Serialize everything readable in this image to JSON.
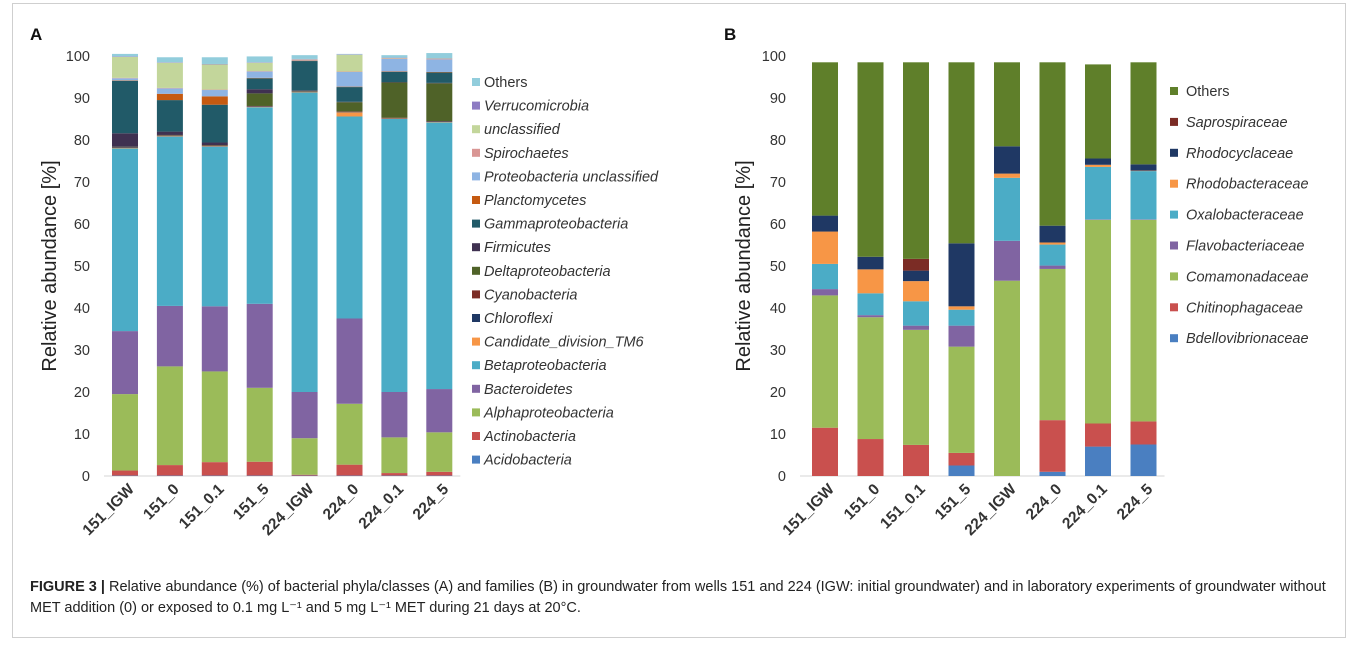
{
  "caption": {
    "figure_label": "FIGURE 3 |",
    "text": "Relative abundance (%) of bacterial phyla/classes (A) and families (B) in groundwater from wells 151 and 224 (IGW: initial groundwater) and in laboratory experiments of groundwater without MET addition (0) or exposed to 0.1 mg L⁻¹ and 5 mg L⁻¹ MET during 21 days at 20°C."
  },
  "chart_data": [
    {
      "panel": "A",
      "type": "bar",
      "stacked": true,
      "ylabel": "Relative abundance [%]",
      "xlabel": "",
      "ylim": [
        0,
        100
      ],
      "yticks": [
        0,
        10,
        20,
        30,
        40,
        50,
        60,
        70,
        80,
        90,
        100
      ],
      "grid": false,
      "legend_position": "right",
      "categories": [
        "151_IGW",
        "151_0",
        "151_0.1",
        "151_5",
        "224_IGW",
        "224_0",
        "224_0.1",
        "224_5"
      ],
      "series": [
        {
          "name": "Acidobacteria",
          "color": "#4a7fc1",
          "italic": true,
          "values": [
            0.1,
            0.1,
            0.1,
            0.1,
            0.1,
            0.1,
            0.1,
            0.1
          ]
        },
        {
          "name": "Actinobacteria",
          "color": "#c9504e",
          "italic": true,
          "values": [
            1.2,
            2.5,
            3.2,
            3.3,
            0.2,
            2.6,
            0.6,
            0.9
          ]
        },
        {
          "name": "Alphaproteobacteria",
          "color": "#9bbb59",
          "italic": true,
          "values": [
            18.2,
            23.5,
            21.6,
            17.6,
            8.7,
            14.5,
            8.5,
            9.4
          ]
        },
        {
          "name": "Bacteroidetes",
          "color": "#8064a2",
          "italic": true,
          "values": [
            15.0,
            14.4,
            15.5,
            20.0,
            11.0,
            20.3,
            10.8,
            10.3
          ]
        },
        {
          "name": "Betaproteobacteria",
          "color": "#4bacc6",
          "italic": true,
          "values": [
            43.5,
            40.3,
            38.0,
            46.8,
            71.3,
            48.1,
            65.0,
            63.5
          ]
        },
        {
          "name": "Candidate_division_TM6",
          "color": "#f79646",
          "italic": true,
          "values": [
            0.1,
            0.1,
            0.1,
            0.1,
            0.1,
            1.0,
            0.1,
            0.1
          ]
        },
        {
          "name": "Chloroflexi",
          "color": "#1f3864",
          "italic": true,
          "values": [
            0.1,
            0.1,
            0.1,
            0.1,
            0.1,
            0.1,
            0.1,
            0.1
          ]
        },
        {
          "name": "Cyanobacteria",
          "color": "#7b2c25",
          "italic": true,
          "values": [
            0.1,
            0.1,
            0.1,
            0.1,
            0.1,
            0.1,
            0.1,
            0.1
          ]
        },
        {
          "name": "Deltaproteobacteria",
          "color": "#4f6228",
          "italic": true,
          "values": [
            0.1,
            0.1,
            0.1,
            3.0,
            0.1,
            2.2,
            8.4,
            9.0
          ]
        },
        {
          "name": "Firmicutes",
          "color": "#3f3151",
          "italic": true,
          "values": [
            3.2,
            0.8,
            0.6,
            1.0,
            0.1,
            0.1,
            0.1,
            0.1
          ]
        },
        {
          "name": "Gammaproteobacteria",
          "color": "#215a68",
          "italic": true,
          "values": [
            12.5,
            7.5,
            9.0,
            2.6,
            7.0,
            3.5,
            2.4,
            2.5
          ]
        },
        {
          "name": "Planctomycetes",
          "color": "#c55a11",
          "italic": true,
          "values": [
            0.1,
            1.5,
            2.0,
            0.1,
            0.1,
            0.1,
            0.1,
            0.1
          ]
        },
        {
          "name": "Proteobacteria unclassified",
          "color": "#8eb4e3",
          "italic": true,
          "values": [
            0.5,
            1.3,
            1.5,
            1.5,
            0.1,
            3.5,
            3.0,
            3.0
          ]
        },
        {
          "name": "Spirochaetes",
          "color": "#d99694",
          "italic": true,
          "values": [
            0.1,
            0.1,
            0.1,
            0.1,
            0.1,
            0.1,
            0.1,
            0.1
          ]
        },
        {
          "name": "unclassified",
          "color": "#c3d69b",
          "italic": true,
          "values": [
            5.0,
            6.0,
            6.0,
            2.0,
            0.1,
            4.0,
            0.1,
            0.1
          ]
        },
        {
          "name": "Verrucomicrobia",
          "color": "#8e7cc3",
          "italic": true,
          "values": [
            0.1,
            0.1,
            0.1,
            0.1,
            0.1,
            0.1,
            0.1,
            0.1
          ]
        },
        {
          "name": "Others",
          "color": "#92cddc",
          "italic": false,
          "values": [
            0.6,
            1.2,
            1.6,
            1.4,
            0.9,
            0.1,
            0.6,
            1.2
          ]
        }
      ]
    },
    {
      "panel": "B",
      "type": "bar",
      "stacked": true,
      "ylabel": "Relative abundance [%]",
      "xlabel": "",
      "ylim": [
        0,
        100
      ],
      "yticks": [
        0,
        10,
        20,
        30,
        40,
        50,
        60,
        70,
        80,
        90,
        100
      ],
      "grid": false,
      "legend_position": "right",
      "categories": [
        "151_IGW",
        "151_0",
        "151_0.1",
        "151_5",
        "224_IGW",
        "224_0",
        "224_0.1",
        "224_5"
      ],
      "series": [
        {
          "name": "Bdellovibrionaceae",
          "color": "#4a7fc1",
          "italic": true,
          "values": [
            0,
            0,
            0,
            2.5,
            0,
            1.0,
            7.0,
            7.5
          ]
        },
        {
          "name": "Chitinophagaceae",
          "color": "#c9504e",
          "italic": true,
          "values": [
            11.5,
            8.8,
            7.4,
            3.0,
            0,
            12.3,
            5.5,
            5.5
          ]
        },
        {
          "name": "Comamonadaceae",
          "color": "#9bbb59",
          "italic": true,
          "values": [
            31.5,
            29.0,
            27.4,
            25.3,
            46.5,
            36.0,
            48.5,
            48.0
          ]
        },
        {
          "name": "Flavobacteriaceae",
          "color": "#8064a2",
          "italic": true,
          "values": [
            1.5,
            0.5,
            1.0,
            5.0,
            9.5,
            0.8,
            0.1,
            0.1
          ]
        },
        {
          "name": "Oxalobacteraceae",
          "color": "#4bacc6",
          "italic": true,
          "values": [
            6.0,
            5.2,
            5.8,
            3.8,
            15.0,
            5.0,
            12.5,
            11.5
          ]
        },
        {
          "name": "Rhodobacteraceae",
          "color": "#f79646",
          "italic": true,
          "values": [
            7.7,
            5.7,
            4.8,
            0.8,
            1.0,
            0.5,
            0.5,
            0.1
          ]
        },
        {
          "name": "Rhodocyclaceae",
          "color": "#1f3864",
          "italic": true,
          "values": [
            3.8,
            3.0,
            2.5,
            15.0,
            6.5,
            4.0,
            1.5,
            1.5
          ]
        },
        {
          "name": "Saprospiraceae",
          "color": "#7b2c25",
          "italic": true,
          "values": [
            0,
            0,
            2.8,
            0,
            0,
            0,
            0,
            0
          ]
        },
        {
          "name": "Others",
          "color": "#5f7f2a",
          "italic": false,
          "values": [
            36.5,
            46.3,
            46.8,
            43.1,
            20.0,
            38.9,
            22.4,
            24.3
          ]
        }
      ]
    }
  ]
}
